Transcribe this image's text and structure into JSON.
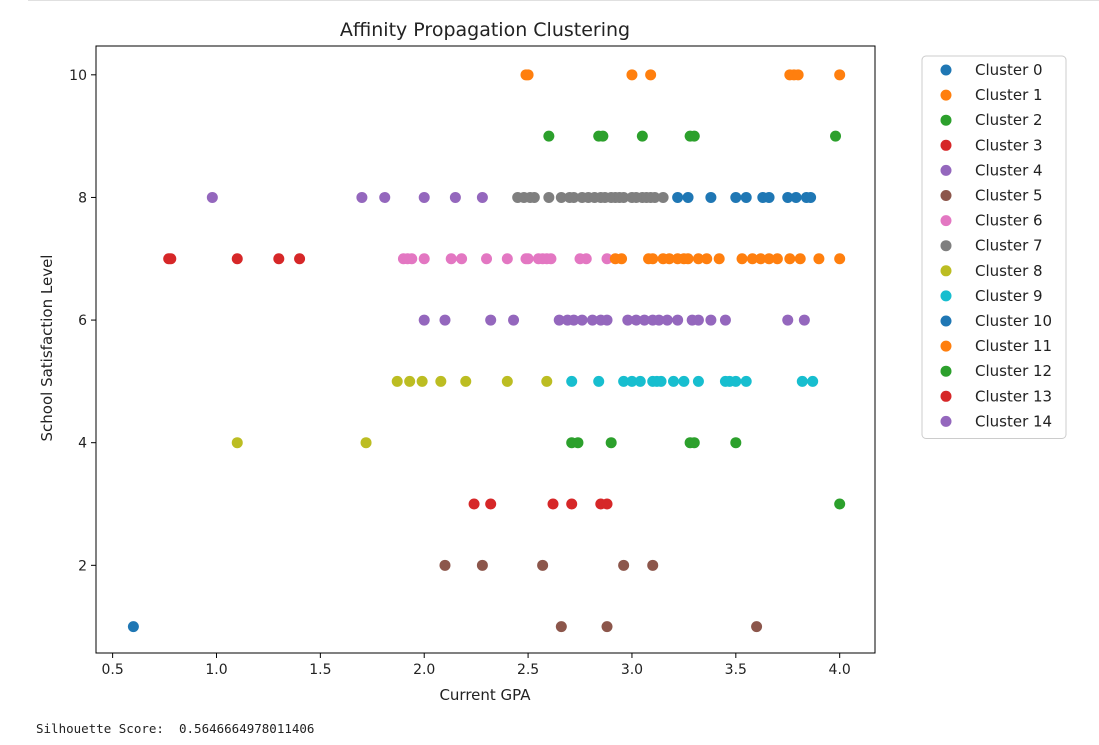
{
  "output": {
    "silhouette_label": "Silhouette Score:",
    "silhouette_value": "0.5646664978011406"
  },
  "chart_data": {
    "type": "scatter",
    "title": "Affinity Propagation Clustering",
    "xlabel": "Current GPA",
    "ylabel": "School Satisfaction Level",
    "xlim": [
      0.42,
      4.17
    ],
    "ylim": [
      0.57,
      10.47
    ],
    "xticks": [
      0.5,
      1.0,
      1.5,
      2.0,
      2.5,
      3.0,
      3.5,
      4.0
    ],
    "xtick_labels": [
      "0.5",
      "1.0",
      "1.5",
      "2.0",
      "2.5",
      "3.0",
      "3.5",
      "4.0"
    ],
    "yticks": [
      2,
      4,
      6,
      8,
      10
    ],
    "ytick_labels": [
      "2",
      "4",
      "6",
      "8",
      "10"
    ],
    "grid": false,
    "legend_position": "outside-right",
    "series": [
      {
        "name": "Cluster 0",
        "color": "#1f77b4",
        "points": [
          [
            0.6,
            1
          ]
        ]
      },
      {
        "name": "Cluster 1",
        "color": "#ff7f0e",
        "points": [
          [
            2.49,
            10
          ],
          [
            2.5,
            10
          ],
          [
            3.0,
            10
          ],
          [
            3.09,
            10
          ],
          [
            3.76,
            10
          ],
          [
            3.78,
            10
          ],
          [
            3.8,
            10
          ],
          [
            4.0,
            10
          ]
        ]
      },
      {
        "name": "Cluster 2",
        "color": "#2ca02c",
        "points": [
          [
            2.6,
            9
          ],
          [
            2.84,
            9
          ],
          [
            2.86,
            9
          ],
          [
            3.05,
            9
          ],
          [
            3.28,
            9
          ],
          [
            3.3,
            9
          ],
          [
            3.98,
            9
          ]
        ]
      },
      {
        "name": "Cluster 3",
        "color": "#d62728",
        "points": [
          [
            0.77,
            7
          ],
          [
            0.78,
            7
          ],
          [
            1.1,
            7
          ],
          [
            1.3,
            7
          ],
          [
            1.4,
            7
          ]
        ]
      },
      {
        "name": "Cluster 4",
        "color": "#9467bd",
        "points": [
          [
            0.98,
            8
          ],
          [
            1.7,
            8
          ],
          [
            1.81,
            8
          ],
          [
            2.0,
            8
          ],
          [
            2.15,
            8
          ],
          [
            2.28,
            8
          ]
        ]
      },
      {
        "name": "Cluster 5",
        "color": "#8c564b",
        "points": [
          [
            2.1,
            2
          ],
          [
            2.28,
            2
          ],
          [
            2.57,
            2
          ],
          [
            2.96,
            2
          ],
          [
            3.1,
            2
          ],
          [
            2.66,
            1
          ],
          [
            2.88,
            1
          ],
          [
            3.6,
            1
          ]
        ]
      },
      {
        "name": "Cluster 6",
        "color": "#e377c2",
        "points": [
          [
            1.9,
            7
          ],
          [
            1.92,
            7
          ],
          [
            1.94,
            7
          ],
          [
            2.0,
            7
          ],
          [
            2.13,
            7
          ],
          [
            2.18,
            7
          ],
          [
            2.3,
            7
          ],
          [
            2.4,
            7
          ],
          [
            2.49,
            7
          ],
          [
            2.5,
            7
          ],
          [
            2.55,
            7
          ],
          [
            2.57,
            7
          ],
          [
            2.59,
            7
          ],
          [
            2.61,
            7
          ],
          [
            2.75,
            7
          ],
          [
            2.78,
            7
          ],
          [
            2.88,
            7
          ]
        ]
      },
      {
        "name": "Cluster 7",
        "color": "#7f7f7f",
        "points": [
          [
            2.45,
            8
          ],
          [
            2.48,
            8
          ],
          [
            2.51,
            8
          ],
          [
            2.53,
            8
          ],
          [
            2.6,
            8
          ],
          [
            2.66,
            8
          ],
          [
            2.7,
            8
          ],
          [
            2.72,
            8
          ],
          [
            2.76,
            8
          ],
          [
            2.79,
            8
          ],
          [
            2.82,
            8
          ],
          [
            2.85,
            8
          ],
          [
            2.87,
            8
          ],
          [
            2.9,
            8
          ],
          [
            2.92,
            8
          ],
          [
            2.94,
            8
          ],
          [
            2.96,
            8
          ],
          [
            3.0,
            8
          ],
          [
            3.02,
            8
          ],
          [
            3.05,
            8
          ],
          [
            3.07,
            8
          ],
          [
            3.09,
            8
          ],
          [
            3.11,
            8
          ],
          [
            3.15,
            8
          ]
        ]
      },
      {
        "name": "Cluster 8",
        "color": "#bcbd22",
        "points": [
          [
            1.87,
            5
          ],
          [
            1.93,
            5
          ],
          [
            1.99,
            5
          ],
          [
            2.08,
            5
          ],
          [
            2.2,
            5
          ],
          [
            2.4,
            5
          ],
          [
            2.59,
            5
          ],
          [
            1.1,
            4
          ],
          [
            1.72,
            4
          ]
        ]
      },
      {
        "name": "Cluster 9",
        "color": "#17becf",
        "points": [
          [
            2.71,
            5
          ],
          [
            2.84,
            5
          ],
          [
            2.96,
            5
          ],
          [
            3.0,
            5
          ],
          [
            3.04,
            5
          ],
          [
            3.1,
            5
          ],
          [
            3.12,
            5
          ],
          [
            3.14,
            5
          ],
          [
            3.2,
            5
          ],
          [
            3.25,
            5
          ],
          [
            3.32,
            5
          ],
          [
            3.45,
            5
          ],
          [
            3.47,
            5
          ],
          [
            3.5,
            5
          ],
          [
            3.55,
            5
          ],
          [
            3.82,
            5
          ],
          [
            3.87,
            5
          ]
        ]
      },
      {
        "name": "Cluster 10",
        "color": "#1f77b4",
        "points": [
          [
            3.22,
            8
          ],
          [
            3.27,
            8
          ],
          [
            3.38,
            8
          ],
          [
            3.5,
            8
          ],
          [
            3.55,
            8
          ],
          [
            3.63,
            8
          ],
          [
            3.66,
            8
          ],
          [
            3.75,
            8
          ],
          [
            3.79,
            8
          ],
          [
            3.84,
            8
          ],
          [
            3.86,
            8
          ]
        ]
      },
      {
        "name": "Cluster 11",
        "color": "#ff7f0e",
        "points": [
          [
            2.92,
            7
          ],
          [
            2.95,
            7
          ],
          [
            3.08,
            7
          ],
          [
            3.1,
            7
          ],
          [
            3.15,
            7
          ],
          [
            3.18,
            7
          ],
          [
            3.22,
            7
          ],
          [
            3.25,
            7
          ],
          [
            3.27,
            7
          ],
          [
            3.32,
            7
          ],
          [
            3.36,
            7
          ],
          [
            3.42,
            7
          ],
          [
            3.53,
            7
          ],
          [
            3.58,
            7
          ],
          [
            3.62,
            7
          ],
          [
            3.66,
            7
          ],
          [
            3.7,
            7
          ],
          [
            3.76,
            7
          ],
          [
            3.81,
            7
          ],
          [
            3.9,
            7
          ],
          [
            4.0,
            7
          ]
        ]
      },
      {
        "name": "Cluster 12",
        "color": "#2ca02c",
        "points": [
          [
            2.71,
            4
          ],
          [
            2.74,
            4
          ],
          [
            2.9,
            4
          ],
          [
            3.28,
            4
          ],
          [
            3.3,
            4
          ],
          [
            3.5,
            4
          ],
          [
            4.0,
            3
          ]
        ]
      },
      {
        "name": "Cluster 13",
        "color": "#d62728",
        "points": [
          [
            2.24,
            3
          ],
          [
            2.32,
            3
          ],
          [
            2.62,
            3
          ],
          [
            2.71,
            3
          ],
          [
            2.85,
            3
          ],
          [
            2.88,
            3
          ]
        ]
      },
      {
        "name": "Cluster 14",
        "color": "#9467bd",
        "points": [
          [
            2.0,
            6
          ],
          [
            2.1,
            6
          ],
          [
            2.32,
            6
          ],
          [
            2.43,
            6
          ],
          [
            2.65,
            6
          ],
          [
            2.69,
            6
          ],
          [
            2.72,
            6
          ],
          [
            2.76,
            6
          ],
          [
            2.81,
            6
          ],
          [
            2.85,
            6
          ],
          [
            2.88,
            6
          ],
          [
            2.98,
            6
          ],
          [
            3.02,
            6
          ],
          [
            3.06,
            6
          ],
          [
            3.1,
            6
          ],
          [
            3.13,
            6
          ],
          [
            3.17,
            6
          ],
          [
            3.22,
            6
          ],
          [
            3.29,
            6
          ],
          [
            3.32,
            6
          ],
          [
            3.38,
            6
          ],
          [
            3.45,
            6
          ],
          [
            3.75,
            6
          ],
          [
            3.83,
            6
          ]
        ]
      }
    ]
  }
}
